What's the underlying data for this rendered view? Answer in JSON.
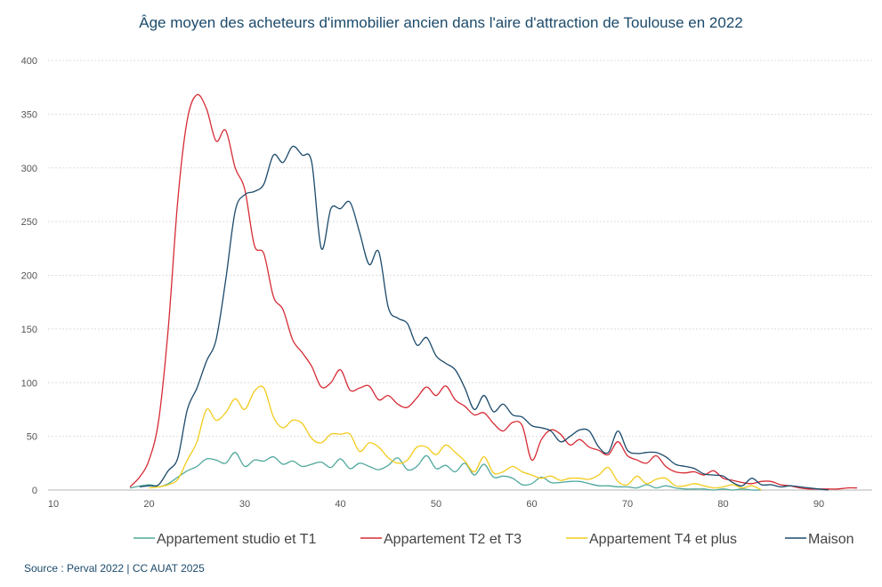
{
  "title": "Âge moyen des acheteurs d'immobilier ancien dans l'aire d'attraction de Toulouse en 2022",
  "source": "Source : Perval 2022 | CC AUAT 2025",
  "chart_data": {
    "type": "line",
    "xlim": [
      10,
      95
    ],
    "ylim": [
      0,
      400
    ],
    "xticks": [
      10,
      20,
      30,
      40,
      50,
      60,
      70,
      80,
      90
    ],
    "yticks": [
      0,
      50,
      100,
      150,
      200,
      250,
      300,
      350,
      400
    ],
    "grid": true,
    "legend_position": "bottom",
    "series": [
      {
        "name": "Appartement studio et T1",
        "color": "#4fa89c",
        "x": [
          18,
          20,
          21,
          22,
          23,
          24,
          25,
          26,
          27,
          28,
          29,
          30,
          31,
          32,
          33,
          34,
          35,
          36,
          37,
          38,
          39,
          40,
          41,
          42,
          43,
          44,
          45,
          46,
          47,
          48,
          49,
          50,
          51,
          52,
          53,
          54,
          55,
          56,
          57,
          58,
          59,
          60,
          61,
          62,
          63,
          64,
          65,
          66,
          67,
          68,
          69,
          70,
          71,
          72,
          73,
          74,
          75,
          76,
          77,
          78,
          79,
          80,
          81,
          82,
          83,
          84
        ],
        "y": [
          2,
          5,
          3,
          6,
          12,
          18,
          22,
          29,
          28,
          25,
          35,
          22,
          28,
          27,
          31,
          24,
          27,
          22,
          24,
          26,
          21,
          29,
          20,
          25,
          22,
          19,
          23,
          30,
          19,
          22,
          32,
          20,
          23,
          17,
          25,
          14,
          24,
          12,
          13,
          11,
          5,
          6,
          12,
          7,
          7,
          8,
          8,
          6,
          4,
          4,
          3,
          3,
          2,
          5,
          2,
          4,
          2,
          1,
          1,
          1,
          0,
          1,
          0,
          1,
          0,
          0
        ]
      },
      {
        "name": "Appartement T2 et T3",
        "color": "#d62b35",
        "x": [
          18,
          19,
          20,
          21,
          22,
          23,
          24,
          25,
          26,
          27,
          28,
          29,
          30,
          31,
          32,
          33,
          34,
          35,
          36,
          37,
          38,
          39,
          40,
          41,
          42,
          43,
          44,
          45,
          46,
          47,
          48,
          49,
          50,
          51,
          52,
          53,
          54,
          55,
          56,
          57,
          58,
          59,
          60,
          61,
          62,
          63,
          64,
          65,
          66,
          67,
          68,
          69,
          70,
          71,
          72,
          73,
          74,
          75,
          76,
          77,
          78,
          79,
          80,
          81,
          82,
          83,
          84,
          85,
          86,
          87,
          88,
          89,
          90,
          91,
          92,
          93,
          94
        ],
        "y": [
          3,
          12,
          28,
          65,
          150,
          270,
          345,
          368,
          355,
          325,
          335,
          300,
          280,
          228,
          220,
          180,
          168,
          140,
          128,
          115,
          96,
          100,
          112,
          93,
          95,
          97,
          84,
          88,
          80,
          77,
          86,
          96,
          88,
          97,
          84,
          78,
          70,
          72,
          62,
          55,
          63,
          60,
          28,
          47,
          56,
          52,
          42,
          47,
          40,
          37,
          33,
          45,
          32,
          28,
          25,
          32,
          22,
          17,
          16,
          17,
          14,
          18,
          11,
          9,
          7,
          6,
          8,
          8,
          5,
          4,
          2,
          1,
          1,
          1,
          1,
          2,
          2
        ]
      },
      {
        "name": "Appartement T4 et plus",
        "color": "#f3cb1b",
        "x": [
          20,
          21,
          22,
          23,
          24,
          25,
          26,
          27,
          28,
          29,
          30,
          31,
          32,
          33,
          34,
          35,
          36,
          37,
          38,
          39,
          40,
          41,
          42,
          43,
          44,
          45,
          46,
          47,
          48,
          49,
          50,
          51,
          52,
          53,
          54,
          55,
          56,
          57,
          58,
          59,
          60,
          61,
          62,
          63,
          64,
          65,
          66,
          67,
          68,
          69,
          70,
          71,
          72,
          73,
          74,
          75,
          76,
          77,
          78,
          79,
          80,
          81,
          82,
          83,
          84
        ],
        "y": [
          2,
          3,
          5,
          10,
          28,
          45,
          75,
          65,
          72,
          85,
          75,
          92,
          95,
          68,
          58,
          65,
          62,
          48,
          44,
          52,
          52,
          52,
          36,
          44,
          40,
          30,
          25,
          28,
          40,
          40,
          33,
          42,
          35,
          27,
          17,
          31,
          16,
          17,
          22,
          17,
          14,
          11,
          13,
          9,
          11,
          11,
          10,
          14,
          21,
          8,
          5,
          13,
          6,
          10,
          11,
          4,
          4,
          6,
          4,
          2,
          3,
          5,
          2,
          4,
          0
        ]
      },
      {
        "name": "Maison",
        "color": "#1b4a6b",
        "x": [
          19,
          20,
          21,
          22,
          23,
          24,
          25,
          26,
          27,
          28,
          29,
          30,
          31,
          32,
          33,
          34,
          35,
          36,
          37,
          38,
          39,
          40,
          41,
          42,
          43,
          44,
          45,
          46,
          47,
          48,
          49,
          50,
          51,
          52,
          53,
          54,
          55,
          56,
          57,
          58,
          59,
          60,
          61,
          62,
          63,
          64,
          65,
          66,
          67,
          68,
          69,
          70,
          71,
          72,
          73,
          74,
          75,
          76,
          77,
          78,
          79,
          80,
          81,
          82,
          83,
          84,
          85,
          86,
          87,
          88,
          89,
          90,
          91
        ],
        "y": [
          3,
          4,
          5,
          18,
          30,
          75,
          95,
          120,
          140,
          195,
          260,
          275,
          278,
          285,
          312,
          305,
          320,
          312,
          305,
          225,
          262,
          262,
          268,
          240,
          210,
          222,
          170,
          160,
          155,
          135,
          142,
          125,
          118,
          112,
          95,
          75,
          88,
          73,
          80,
          70,
          68,
          60,
          58,
          55,
          45,
          50,
          56,
          55,
          40,
          35,
          55,
          37,
          34,
          35,
          35,
          31,
          24,
          22,
          20,
          15,
          14,
          13,
          7,
          4,
          11,
          5,
          5,
          3,
          4,
          3,
          2,
          1,
          0
        ]
      }
    ]
  }
}
